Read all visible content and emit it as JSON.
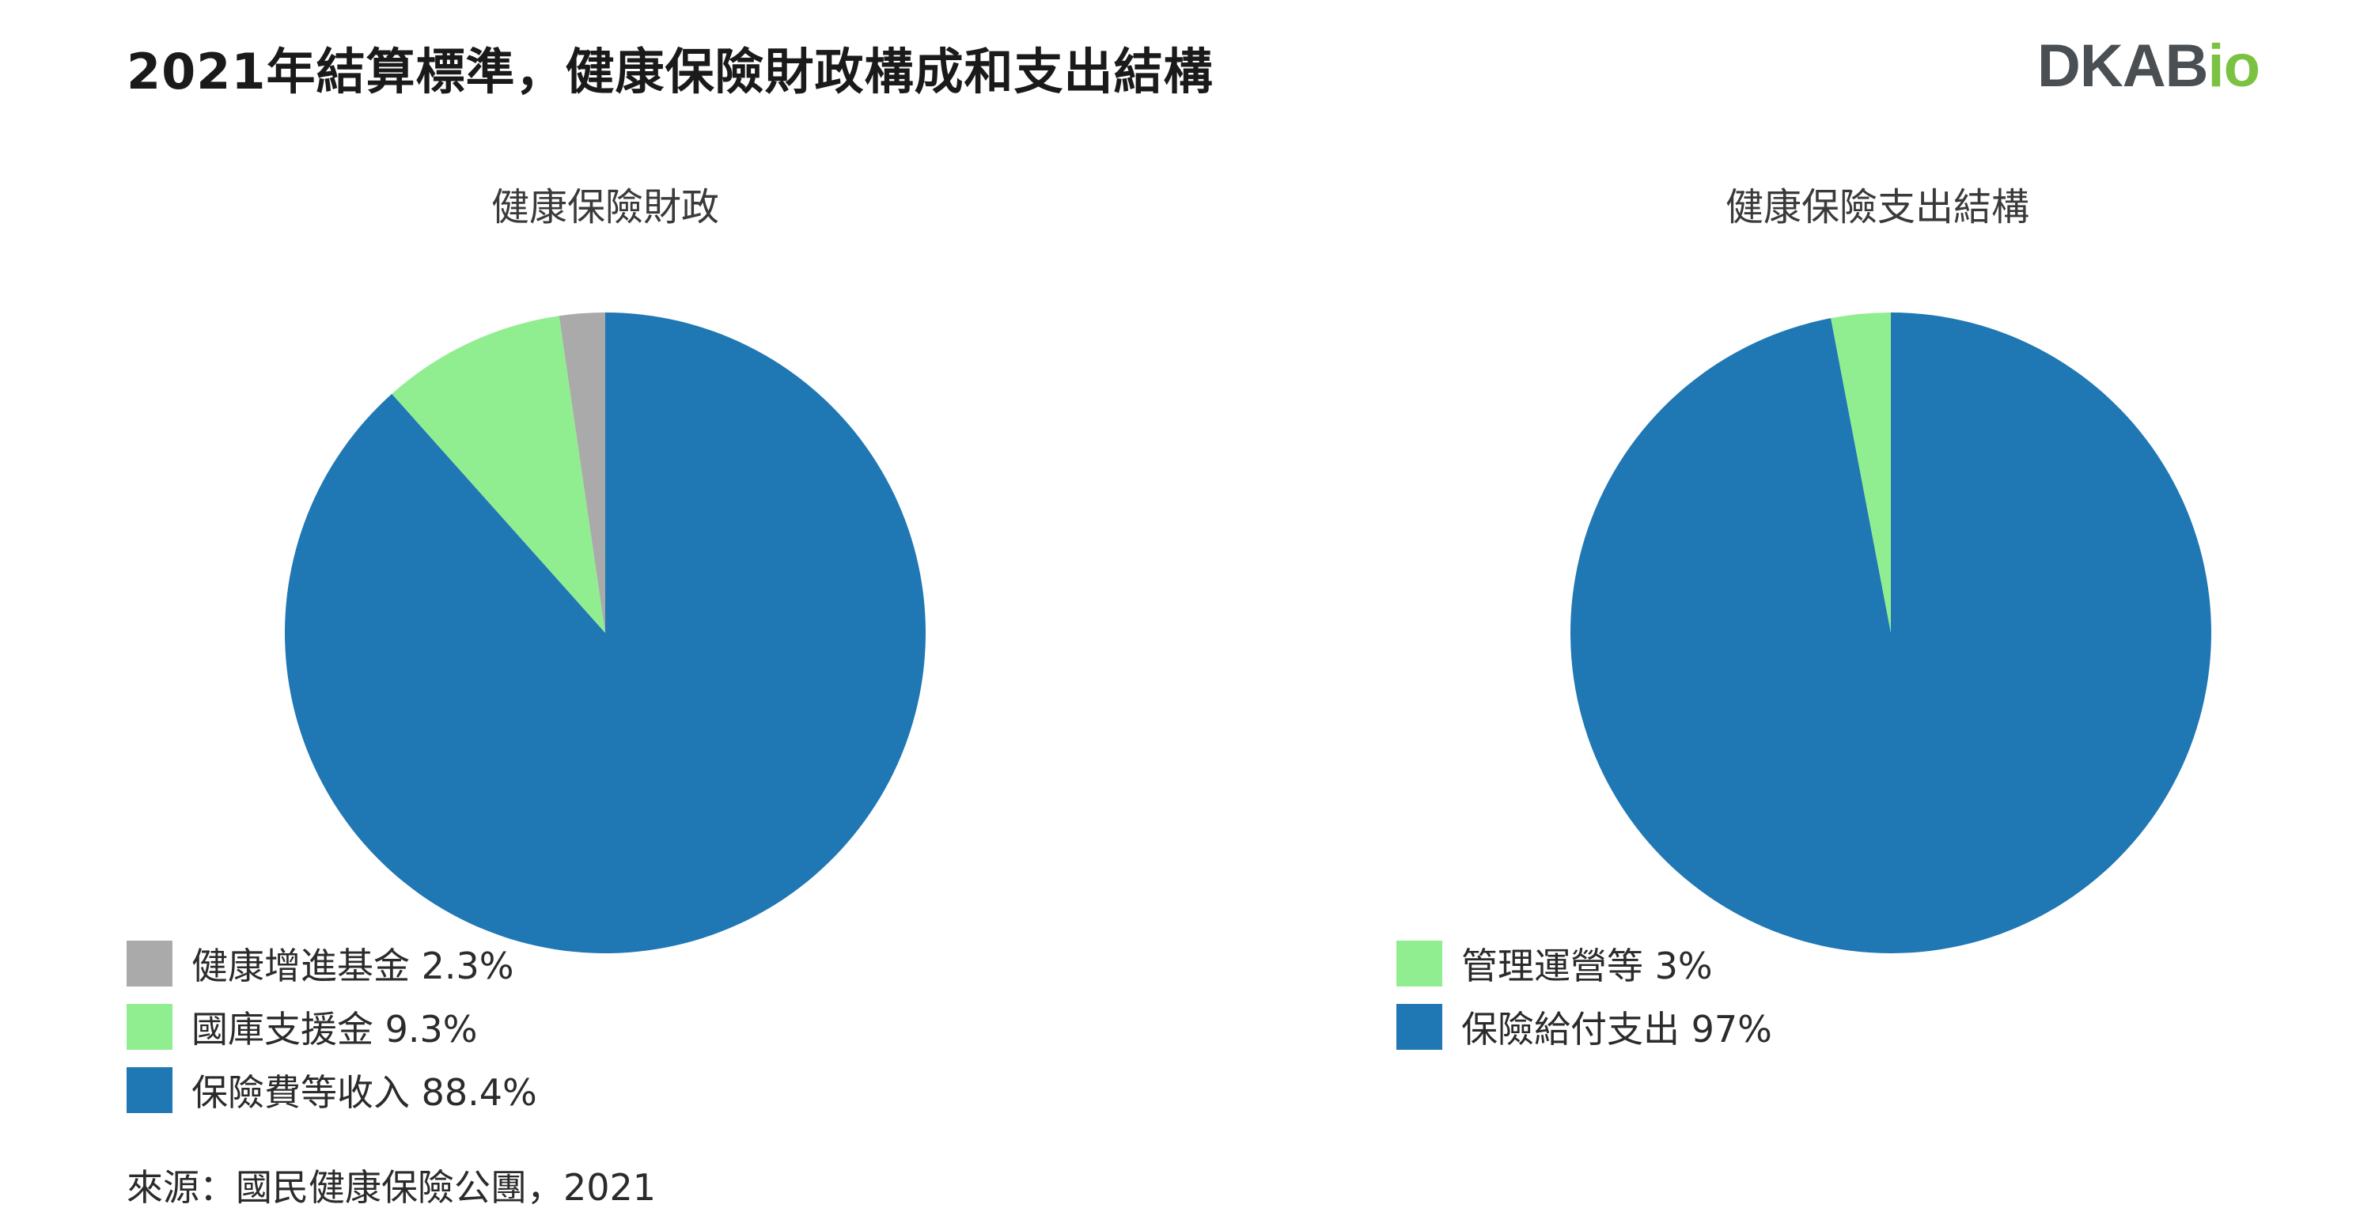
{
  "header": {
    "title": "2021年結算標準，健康保險財政構成和支出結構",
    "logo_main": "DKAB",
    "logo_accent": "io"
  },
  "chart_data": [
    {
      "type": "pie",
      "title": "健康保險財政",
      "start_angle_deg": 0,
      "direction": "clockwise",
      "slices": [
        {
          "label": "保險費等收入 88.4%",
          "value": 88.4,
          "color": "#1f77b4"
        },
        {
          "label": "國庫支援金 9.3%",
          "value": 9.3,
          "color": "#90ee90"
        },
        {
          "label": "健康增進基金 2.3%",
          "value": 2.3,
          "color": "#aaaaaa"
        }
      ],
      "legend": [
        {
          "label": "健康增進基金 2.3%",
          "color": "#aaaaaa"
        },
        {
          "label": "國庫支援金 9.3%",
          "color": "#90ee90"
        },
        {
          "label": "保險費等收入 88.4%",
          "color": "#1f77b4"
        }
      ],
      "legend_placement": "bottom-left"
    },
    {
      "type": "pie",
      "title": "健康保險支出結構",
      "start_angle_deg": 0,
      "direction": "clockwise",
      "slices": [
        {
          "label": "保險給付支出 97%",
          "value": 97,
          "color": "#1f77b4"
        },
        {
          "label": "管理運營等 3%",
          "value": 3,
          "color": "#90ee90"
        }
      ],
      "legend": [
        {
          "label": "管理運營等 3%",
          "color": "#90ee90"
        },
        {
          "label": "保險給付支出 97%",
          "color": "#1f77b4"
        }
      ],
      "legend_placement": "bottom-left"
    }
  ],
  "footer": {
    "source": "來源：國民健康保險公團，2021"
  }
}
